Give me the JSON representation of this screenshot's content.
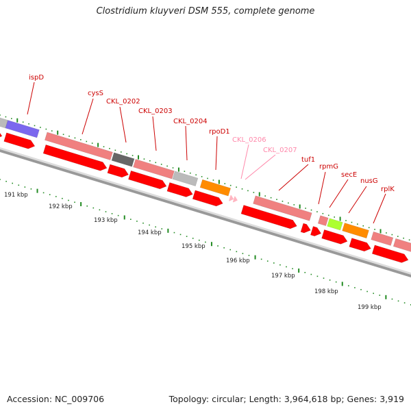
{
  "title": "Clostridium kluyveri DSM 555, complete genome",
  "accession_text": "Accession: NC_009706",
  "info_text": "Topology: circular; Length: 3,964,618 bp; Genes: 3,919",
  "colors": {
    "forward_gene": "#f08080",
    "reverse_gene": "#ff0000",
    "grey_gene": "#bbbbbb",
    "dark_gene": "#666666",
    "purple_gene": "#7b68ee",
    "orange_gene": "#ff8c00",
    "green_gene": "#adff2f",
    "pink_gene": "#ffb6c1",
    "label_red": "#cc0000",
    "label_pink": "#ff88aa",
    "tick": "#228b22"
  },
  "gene_labels": [
    {
      "name": "ispD",
      "style": "red"
    },
    {
      "name": "cysS",
      "style": "red"
    },
    {
      "name": "CKL_0202",
      "style": "red"
    },
    {
      "name": "CKL_0203",
      "style": "red"
    },
    {
      "name": "CKL_0204",
      "style": "red"
    },
    {
      "name": "rpoD1",
      "style": "red"
    },
    {
      "name": "CKL_0206",
      "style": "pink"
    },
    {
      "name": "CKL_0207",
      "style": "pink"
    },
    {
      "name": "tuf1",
      "style": "red"
    },
    {
      "name": "rpmG",
      "style": "red"
    },
    {
      "name": "secE",
      "style": "red"
    },
    {
      "name": "nusG",
      "style": "red"
    },
    {
      "name": "rplK",
      "style": "red"
    }
  ],
  "kbp_labels": [
    "191 kbp",
    "192 kbp",
    "193 kbp",
    "194 kbp",
    "195 kbp",
    "196 kbp",
    "197 kbp",
    "198 kbp",
    "199 kbp"
  ]
}
